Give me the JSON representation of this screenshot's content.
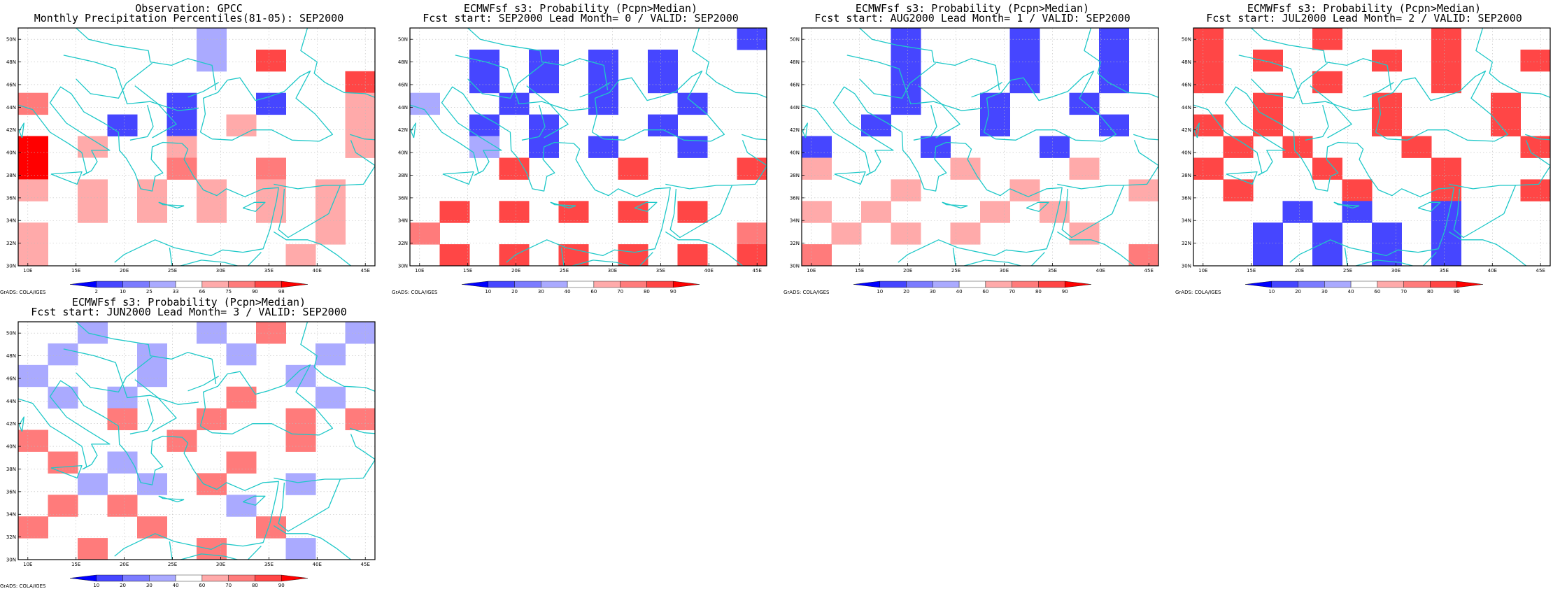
{
  "axes": {
    "lon_labels": [
      "10E",
      "15E",
      "20E",
      "25E",
      "30E",
      "35E",
      "40E",
      "45E"
    ],
    "lat_labels": [
      "30N",
      "32N",
      "34N",
      "36N",
      "38N",
      "40N",
      "42N",
      "44N",
      "46N",
      "48N",
      "50N"
    ]
  },
  "credit": "GrADS: COLA/IGES",
  "panels": [
    {
      "title_line1": "Observation: GPCC",
      "title_line2": "Monthly Precipitation Percentiles(81-05): SEP2000",
      "colorbar": [
        "2",
        "10",
        "25",
        "33",
        "66",
        "75",
        "90",
        "98"
      ],
      "colorbar_colors": [
        "#0000ff",
        "#4646ff",
        "#7b7bff",
        "#aaaaff",
        "#ffffff",
        "#ffaaaa",
        "#ff7b7b",
        "#ff4646",
        "#ff0000"
      ],
      "grid": [
        "......3.....",
        "......3.7...",
        "...........7",
        "6....1..1..5",
        "...1.1.5...5",
        "8.5..5.....5",
        "8.4..6..6...",
        "5.5.5.5.5.5.",
        "..5.5.5.5.5.",
        "5.........5.",
        "5........5.."
      ]
    },
    {
      "title_line1": "ECMWFsf s3: Probability (Pcpn>Median)",
      "title_line2": "Fcst start: SEP2000   Lead Month= 0 / VALID: SEP2000",
      "colorbar": [
        "10",
        "20",
        "30",
        "40",
        "60",
        "70",
        "80",
        "90"
      ],
      "colorbar_colors": [
        "#0000ff",
        "#4646ff",
        "#7b7bff",
        "#aaaaff",
        "#ffffff",
        "#ffaaaa",
        "#ff7b7b",
        "#ff4646",
        "#ff0000"
      ],
      "grid": [
        "...........1",
        "..1.1.1.1...",
        "..1.1.1.1...",
        "3..1..1..1..",
        "..1.1...1...",
        "..3.1.1..1..",
        "...7...7...7",
        "............",
        ".7.7.7.7.7..",
        "6..........6",
        ".7.7.7.7.7.7"
      ]
    },
    {
      "title_line1": "ECMWFsf s3: Probability (Pcpn>Median)",
      "title_line2": "Fcst start: AUG2000   Lead Month= 1 / VALID: SEP2000",
      "colorbar": [
        "10",
        "20",
        "30",
        "40",
        "60",
        "70",
        "80",
        "90"
      ],
      "colorbar_colors": [
        "#0000ff",
        "#4646ff",
        "#7b7bff",
        "#aaaaff",
        "#ffffff",
        "#ffaaaa",
        "#ff7b7b",
        "#ff4646",
        "#ff0000"
      ],
      "grid": [
        "...1...1..1.",
        "...1...1..1.",
        "...1...1..1.",
        "...1..1..1..",
        "..1...1...1.",
        "1...1...1...",
        "5....5...5..",
        "...5...5...5",
        "5.5...5.5...",
        ".5.5.5...5..",
        "6..........6"
      ]
    },
    {
      "title_line1": "ECMWFsf s3: Probability (Pcpn>Median)",
      "title_line2": "Fcst start: JUL2000   Lead Month= 2 / VALID: SEP2000",
      "colorbar": [
        "10",
        "20",
        "30",
        "40",
        "60",
        "70",
        "80",
        "90"
      ],
      "colorbar_colors": [
        "#0000ff",
        "#4646ff",
        "#7b7bff",
        "#aaaaff",
        "#ffffff",
        "#ffaaaa",
        "#ff7b7b",
        "#ff4646",
        "#ff0000"
      ],
      "grid": [
        "7...7...7...",
        "7.7...7.7..7",
        "7...7...7...",
        "..7...7...7.",
        "7.7...7...7.",
        ".7.7...7...7",
        "7...7...7...",
        ".7...7..7..7",
        "...1.1..1...",
        "..1.1.1.1...",
        "..1.1.1.1..."
      ]
    },
    {
      "title_line1": "ECMWFsf s3: Probability (Pcpn>Median)",
      "title_line2": "Fcst start: JUN2000   Lead Month= 3 / VALID: SEP2000",
      "colorbar": [
        "10",
        "20",
        "30",
        "40",
        "60",
        "70",
        "80",
        "90"
      ],
      "colorbar_colors": [
        "#0000ff",
        "#4646ff",
        "#7b7bff",
        "#aaaaff",
        "#ffffff",
        "#ffaaaa",
        "#ff7b7b",
        "#ff4646",
        "#ff0000"
      ],
      "grid": [
        "..3...3.6..3",
        ".3..3..3..3.",
        "3...3....3..",
        ".3.3...6..3.",
        "...6..6..6.6",
        "6....6...6..",
        ".6.3...6....",
        "..3.3.6..3..",
        ".6.6...3....",
        "6...6...6...",
        "..6...6..3.."
      ]
    }
  ]
}
